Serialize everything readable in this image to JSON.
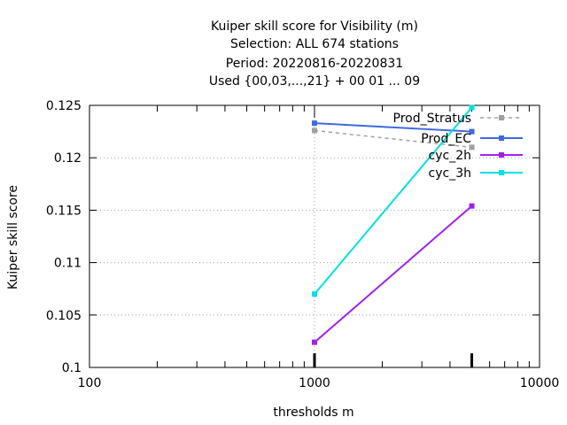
{
  "chart_data": {
    "type": "line",
    "title": [
      "Kuiper skill score  for Visibility (m)",
      "Selection: ALL    674 stations",
      "Period: 20220816-20220831",
      "Used {00,03,...,21} + 00 01 ... 09"
    ],
    "xlabel": "thresholds m",
    "ylabel": "Kuiper skill score",
    "x_scale": "log",
    "xlim": [
      100,
      10000
    ],
    "ylim": [
      0.1,
      0.125
    ],
    "x_ticks": [
      100,
      1000,
      10000
    ],
    "x_tick_labels": [
      "100",
      "1000",
      "10000"
    ],
    "y_ticks": [
      0.1,
      0.105,
      0.11,
      0.115,
      0.12,
      0.125
    ],
    "y_tick_labels": [
      "0.1",
      "0.105",
      "0.11",
      "0.115",
      "0.12",
      "0.125"
    ],
    "grid": true,
    "legend_position": "top-right",
    "series": [
      {
        "name": "Prod_Stratus",
        "color": "#a0a0a0",
        "dash": true,
        "x": [
          1000,
          5000
        ],
        "y": [
          0.1226,
          0.121
        ]
      },
      {
        "name": "Prod_EC",
        "color": "#4169e1",
        "dash": false,
        "x": [
          1000,
          5000
        ],
        "y": [
          0.1233,
          0.1225
        ]
      },
      {
        "name": "cyc_2h",
        "color": "#a020f0",
        "dash": false,
        "x": [
          1000,
          5000
        ],
        "y": [
          0.1024,
          0.1154
        ]
      },
      {
        "name": "cyc_3h",
        "color": "#00e0e0",
        "dash": false,
        "x": [
          1000,
          5000
        ],
        "y": [
          0.107,
          0.1248
        ]
      }
    ]
  }
}
